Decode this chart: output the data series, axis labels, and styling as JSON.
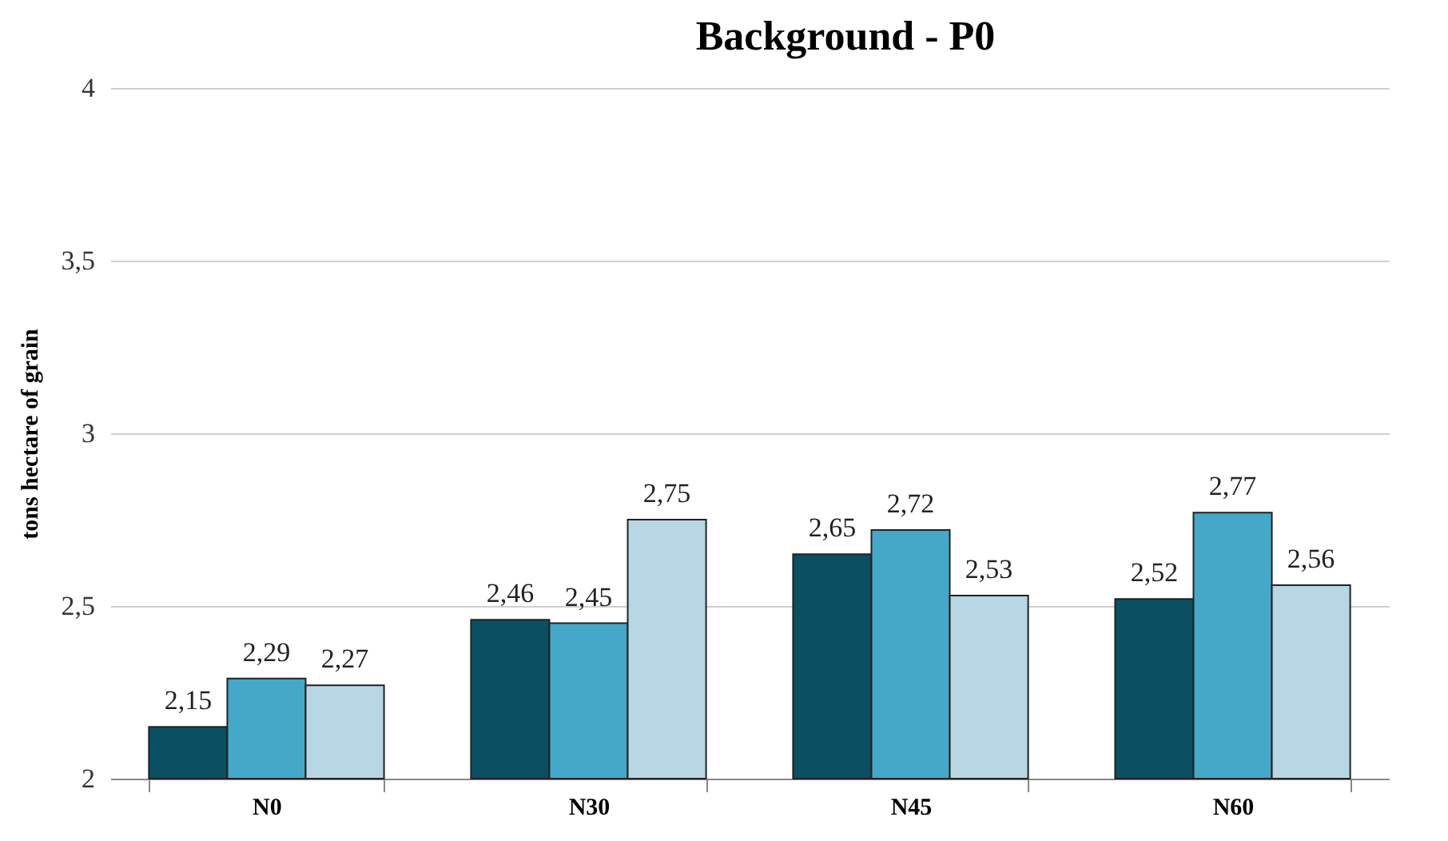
{
  "chart_data": {
    "type": "bar",
    "title": "Background  - P0",
    "ylabel": "tons hectare of grain",
    "categories": [
      "N0",
      "N30",
      "N45",
      "N60"
    ],
    "series": [
      {
        "color": "#0b4f63",
        "values": [
          2.15,
          2.46,
          2.65,
          2.52
        ],
        "value_labels": [
          "2,15",
          "2,46",
          "2,65",
          "2,52"
        ]
      },
      {
        "color": "#45a8c8",
        "values": [
          2.29,
          2.45,
          2.72,
          2.77
        ],
        "value_labels": [
          "2,29",
          "2,45",
          "2,72",
          "2,77"
        ]
      },
      {
        "color": "#b6d7e3",
        "values": [
          2.27,
          2.75,
          2.53,
          2.56
        ],
        "value_labels": [
          "2,27",
          "2,75",
          "2,53",
          "2,56"
        ]
      }
    ],
    "ylim": [
      2,
      4
    ],
    "yticks": [
      2,
      {
        "value": 2.5,
        "label": "2,5"
      },
      3,
      {
        "value": 3.5,
        "label": "3,5"
      },
      4
    ],
    "grid": "y",
    "legend": false
  }
}
